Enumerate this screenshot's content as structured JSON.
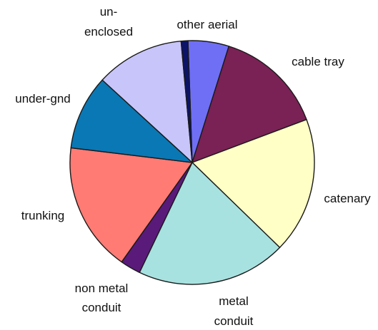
{
  "chart_data": {
    "type": "pie",
    "start_angle_deg": -2,
    "direction": "clockwise",
    "slices": [
      {
        "label": "other aerial",
        "value": 6,
        "color": "#6F6FF5"
      },
      {
        "label": "cable tray",
        "value": 16,
        "color": "#7A2155"
      },
      {
        "label": "catenary",
        "value": 20,
        "color": "#FFFFC6"
      },
      {
        "label": "metal conduit",
        "value": 22,
        "color": "#A8E2E0"
      },
      {
        "label": "non metal conduit",
        "value": 3,
        "color": "#5A1A7A"
      },
      {
        "label": "trunking",
        "value": 19,
        "color": "#FF7B74"
      },
      {
        "label": "under-gnd",
        "value": 11,
        "color": "#0A78B4"
      },
      {
        "label": "un- enclosed",
        "value": 13,
        "color": "#C8C5FA"
      },
      {
        "label": "",
        "value": 1,
        "color": "#0B1468"
      }
    ],
    "labels": [
      {
        "slice": 0,
        "lines": [
          "other aerial"
        ]
      },
      {
        "slice": 1,
        "lines": [
          "cable tray"
        ]
      },
      {
        "slice": 2,
        "lines": [
          "catenary"
        ]
      },
      {
        "slice": 3,
        "lines": [
          "metal",
          "conduit"
        ]
      },
      {
        "slice": 4,
        "lines": [
          "non metal",
          "conduit"
        ]
      },
      {
        "slice": 5,
        "lines": [
          "trunking"
        ]
      },
      {
        "slice": 6,
        "lines": [
          "under-gnd"
        ]
      },
      {
        "slice": 7,
        "lines": [
          "un-",
          "enclosed"
        ]
      }
    ]
  }
}
